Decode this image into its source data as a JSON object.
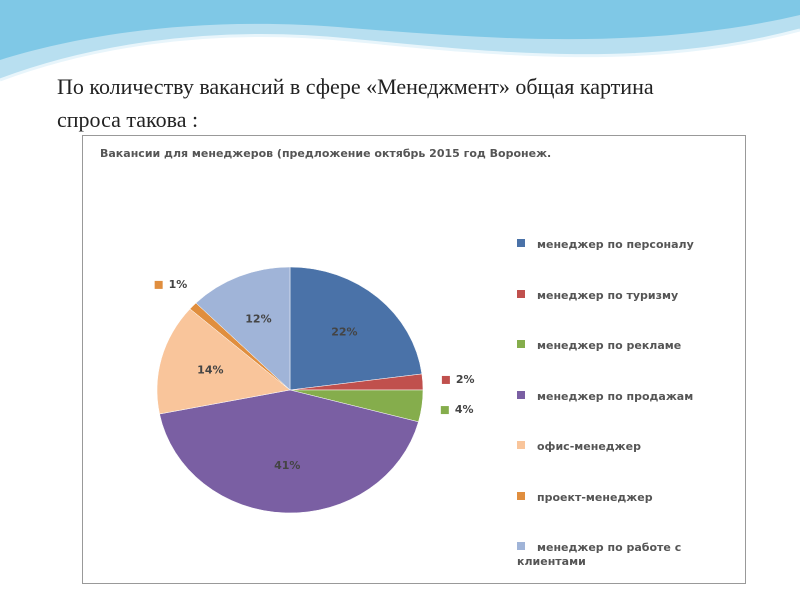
{
  "slide": {
    "heading": "По количеству вакансий в сфере «Менеджмент» общая картина спроса такова :"
  },
  "chart_data": {
    "type": "pie",
    "title": "Вакансии для менеджеров (предложение октябрь 2015 год Воронеж.",
    "categories": [
      "менеджер по персоналу",
      "менеджер по туризму",
      "менеджер по рекламе",
      "менеджер по продажам",
      "офис-менеджер",
      "проект-менеджер",
      "менеджер по работе с клиентами"
    ],
    "values": [
      22,
      2,
      4,
      41,
      14,
      1,
      12
    ],
    "value_labels": [
      "22%",
      "2%",
      "4%",
      "41%",
      "14%",
      "1%",
      "12%"
    ],
    "colors": [
      "#4a72a8",
      "#c0504d",
      "#85ad4c",
      "#7a5fa3",
      "#f9c59b",
      "#e08e3e",
      "#a0b4d8"
    ],
    "legend": "right"
  }
}
